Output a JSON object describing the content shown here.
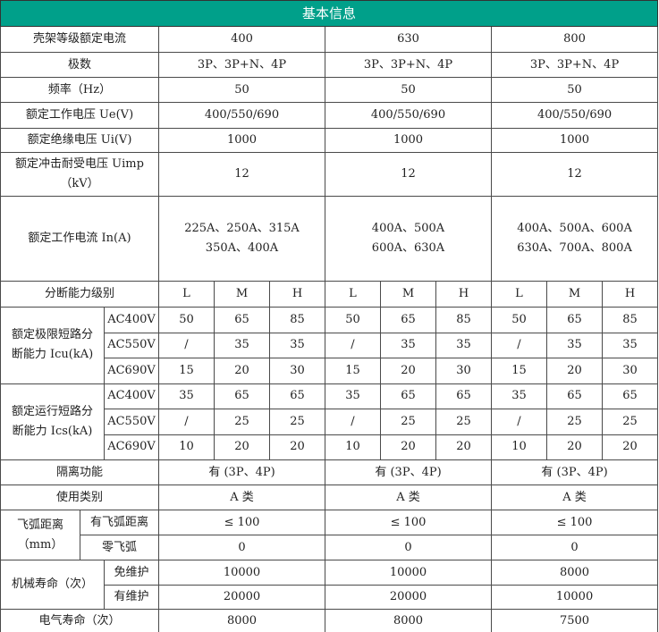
{
  "header": {
    "title": "基本信息"
  },
  "frame_rating": {
    "label": "壳架等级额定电流",
    "values": [
      "400",
      "630",
      "800"
    ]
  },
  "simple_rows": [
    {
      "label": "极数",
      "values": [
        "3P、3P+N、4P",
        "3P、3P+N、4P",
        "3P、3P+N、4P"
      ]
    },
    {
      "label": "频率（Hz）",
      "values": [
        "50",
        "50",
        "50"
      ]
    },
    {
      "label": "额定工作电压 Ue(V)",
      "values": [
        "400/550/690",
        "400/550/690",
        "400/550/690"
      ]
    },
    {
      "label": "额定绝缘电压 Ui(V)",
      "values": [
        "1000",
        "1000",
        "1000"
      ]
    },
    {
      "label": "额定冲击耐受电压 Uimp\n（kV）",
      "values": [
        "12",
        "12",
        "12"
      ]
    },
    {
      "label": "额定工作电流 In(A)",
      "values": [
        "225A、250A、315A\n350A、400A",
        "400A、500A\n600A、630A",
        "400A、500A、600A\n630A、700A、800A"
      ]
    }
  ],
  "breaking_level": {
    "label": "分断能力级别",
    "levels": [
      "L",
      "M",
      "H"
    ]
  },
  "breaking_groups": [
    {
      "label": "额定极限短路分\n断能力 Icu(kA)",
      "rows": [
        {
          "voltage": "AC400V",
          "values": [
            "50",
            "65",
            "85",
            "50",
            "65",
            "85",
            "50",
            "65",
            "85"
          ]
        },
        {
          "voltage": "AC550V",
          "values": [
            "/",
            "35",
            "35",
            "/",
            "35",
            "35",
            "/",
            "35",
            "35"
          ]
        },
        {
          "voltage": "AC690V",
          "values": [
            "15",
            "20",
            "30",
            "15",
            "20",
            "30",
            "15",
            "20",
            "30"
          ]
        }
      ]
    },
    {
      "label": "额定运行短路分\n断能力 Ics(kA)",
      "rows": [
        {
          "voltage": "AC400V",
          "values": [
            "35",
            "65",
            "65",
            "35",
            "65",
            "65",
            "35",
            "65",
            "65"
          ]
        },
        {
          "voltage": "AC550V",
          "values": [
            "/",
            "25",
            "25",
            "/",
            "25",
            "25",
            "/",
            "25",
            "25"
          ]
        },
        {
          "voltage": "AC690V",
          "values": [
            "10",
            "20",
            "20",
            "10",
            "20",
            "20",
            "10",
            "20",
            "20"
          ]
        }
      ]
    }
  ],
  "isolation": {
    "label": "隔离功能",
    "values": [
      "有 (3P、4P)",
      "有 (3P、4P)",
      "有 (3P、4P)"
    ]
  },
  "category": {
    "label": "使用类别",
    "values": [
      "A 类",
      "A 类",
      "A 类"
    ]
  },
  "arc": {
    "label": "飞弧距离\n（mm）",
    "rows": [
      {
        "label": "有飞弧距离",
        "values": [
          "≤ 100",
          "≤ 100",
          "≤ 100"
        ]
      },
      {
        "label": "零飞弧",
        "values": [
          "0",
          "0",
          "0"
        ]
      }
    ]
  },
  "mech_life": {
    "label": "机械寿命（次）",
    "rows": [
      {
        "label": "免维护",
        "values": [
          "10000",
          "10000",
          "8000"
        ]
      },
      {
        "label": "有维护",
        "values": [
          "20000",
          "20000",
          "10000"
        ]
      }
    ]
  },
  "elec_life": {
    "label": "电气寿命（次）",
    "values": [
      "8000",
      "8000",
      "7500"
    ]
  }
}
